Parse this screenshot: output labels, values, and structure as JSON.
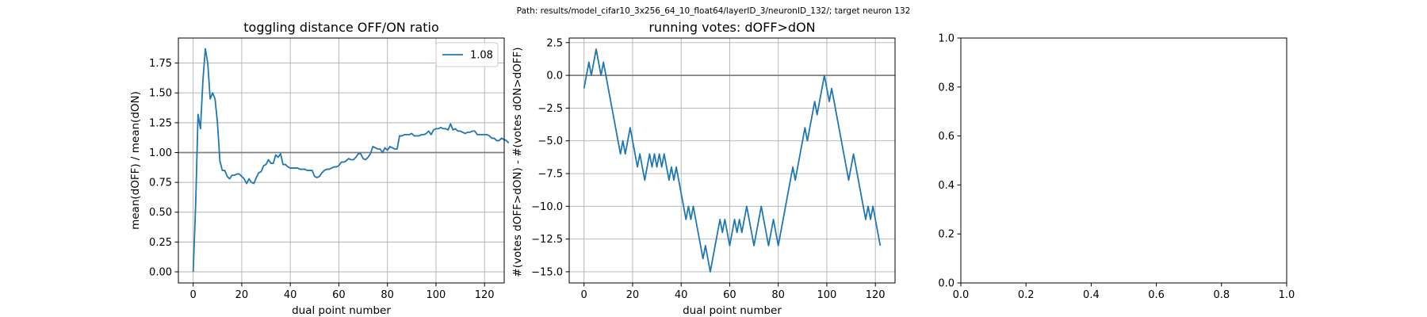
{
  "suptitle": "Path: results/model_cifar10_3x256_64_10_float64/layerID_3/neuronID_132/; target neuron 132",
  "chart_data": [
    {
      "type": "line",
      "title": "toggling distance OFF/ON ratio",
      "xlabel": "dual point number",
      "ylabel": "mean(dOFF) / mean(dON)",
      "xlim": [
        -6.1,
        128.1
      ],
      "ylim": [
        -0.093,
        1.96
      ],
      "xticks": [
        0,
        20,
        40,
        60,
        80,
        100,
        120
      ],
      "xtick_labels": [
        "0",
        "20",
        "40",
        "60",
        "80",
        "100",
        "120"
      ],
      "yticks": [
        0,
        0.25,
        0.5,
        0.75,
        1.0,
        1.25,
        1.5,
        1.75
      ],
      "ytick_labels": [
        "0.00",
        "0.25",
        "0.50",
        "0.75",
        "1.00",
        "1.25",
        "1.50",
        "1.75"
      ],
      "grid": true,
      "reference_line": 1.0,
      "legend_position": "upper right",
      "series": [
        {
          "name": "1.08",
          "color": "#1f77b4",
          "values": [
            0.0,
            0.55,
            1.32,
            1.2,
            1.6,
            1.87,
            1.75,
            1.45,
            1.5,
            1.45,
            1.25,
            0.93,
            0.85,
            0.85,
            0.8,
            0.78,
            0.81,
            0.81,
            0.82,
            0.82,
            0.8,
            0.78,
            0.74,
            0.78,
            0.75,
            0.74,
            0.79,
            0.83,
            0.84,
            0.89,
            0.9,
            0.94,
            0.91,
            0.91,
            0.98,
            0.96,
            0.99,
            0.9,
            0.9,
            0.88,
            0.87,
            0.87,
            0.87,
            0.87,
            0.86,
            0.86,
            0.86,
            0.85,
            0.85,
            0.85,
            0.8,
            0.79,
            0.8,
            0.83,
            0.85,
            0.86,
            0.86,
            0.87,
            0.88,
            0.88,
            0.89,
            0.92,
            0.92,
            0.93,
            0.95,
            0.94,
            0.94,
            0.96,
            0.99,
            0.99,
            0.95,
            0.94,
            0.96,
            0.99,
            1.05,
            1.04,
            1.03,
            1.03,
            1.0,
            1.04,
            1.02,
            1.05,
            1.04,
            1.03,
            1.03,
            1.14,
            1.14,
            1.15,
            1.15,
            1.15,
            1.16,
            1.14,
            1.14,
            1.14,
            1.15,
            1.15,
            1.16,
            1.18,
            1.15,
            1.19,
            1.2,
            1.2,
            1.21,
            1.2,
            1.2,
            1.19,
            1.24,
            1.19,
            1.2,
            1.18,
            1.18,
            1.17,
            1.16,
            1.17,
            1.17,
            1.18,
            1.18,
            1.15,
            1.15,
            1.15,
            1.15,
            1.15,
            1.14,
            1.12,
            1.12,
            1.1,
            1.1,
            1.12,
            1.11,
            1.1,
            1.08
          ]
        }
      ]
    },
    {
      "type": "line",
      "title": "running votes: dOFF>dON",
      "xlabel": "dual point number",
      "ylabel": "#(votes dOFF>dON) - #(votes dON>dOFF)",
      "xlim": [
        -6.1,
        128.1
      ],
      "ylim": [
        -15.85,
        2.85
      ],
      "xticks": [
        0,
        20,
        40,
        60,
        80,
        100,
        120
      ],
      "xtick_labels": [
        "0",
        "20",
        "40",
        "60",
        "80",
        "100",
        "120"
      ],
      "yticks": [
        2.5,
        0,
        -2.5,
        -5,
        -7.5,
        -10,
        -12.5,
        -15
      ],
      "ytick_labels": [
        "2.5",
        "0.0",
        "−2.5",
        "−5.0",
        "−7.5",
        "−10.0",
        "−12.5",
        "−15.0"
      ],
      "grid": true,
      "reference_line": 0,
      "series": [
        {
          "name": "",
          "color": "#1f77b4",
          "values": [
            -1,
            0,
            1,
            0,
            1,
            2,
            1,
            0,
            1,
            0,
            -1,
            -2,
            -3,
            -4,
            -5,
            -6,
            -5,
            -6,
            -5,
            -4,
            -5,
            -6,
            -7,
            -6,
            -7,
            -8,
            -7,
            -6,
            -7,
            -6,
            -7,
            -6,
            -7,
            -6,
            -7,
            -8,
            -7,
            -8,
            -7,
            -8,
            -9,
            -10,
            -11,
            -10,
            -11,
            -10,
            -11,
            -12,
            -13,
            -14,
            -13,
            -14,
            -15,
            -14,
            -13,
            -12,
            -11,
            -12,
            -11,
            -12,
            -13,
            -12,
            -11,
            -12,
            -11,
            -12,
            -11,
            -10,
            -11,
            -12,
            -13,
            -12,
            -11,
            -10,
            -11,
            -12,
            -13,
            -12,
            -11,
            -12,
            -13,
            -12,
            -11,
            -10,
            -9,
            -8,
            -7,
            -8,
            -7,
            -6,
            -5,
            -4,
            -5,
            -4,
            -3,
            -2,
            -3,
            -2,
            -1,
            0,
            -1,
            -2,
            -1,
            -2,
            -3,
            -4,
            -5,
            -6,
            -7,
            -8,
            -7,
            -6,
            -7,
            -8,
            -9,
            -10,
            -11,
            -10,
            -11,
            -10,
            -11,
            -12,
            -13
          ]
        }
      ]
    },
    {
      "type": "line",
      "title": "",
      "xlabel": "",
      "ylabel": "",
      "xlim": [
        0,
        1
      ],
      "ylim": [
        0,
        1
      ],
      "xticks": [
        0,
        0.2,
        0.4,
        0.6,
        0.8,
        1.0
      ],
      "xtick_labels": [
        "0.0",
        "0.2",
        "0.4",
        "0.6",
        "0.8",
        "1.0"
      ],
      "yticks": [
        0,
        0.2,
        0.4,
        0.6,
        0.8,
        1.0
      ],
      "ytick_labels": [
        "0.0",
        "0.2",
        "0.4",
        "0.6",
        "0.8",
        "1.0"
      ],
      "grid": false,
      "series": []
    }
  ]
}
